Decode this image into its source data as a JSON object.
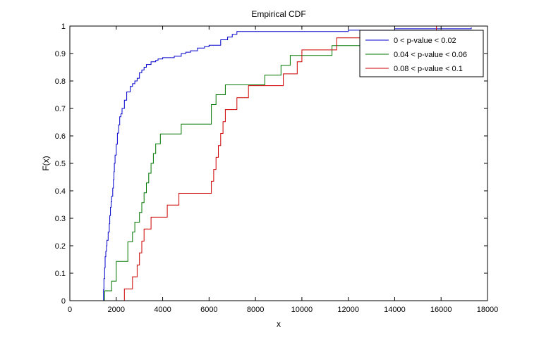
{
  "chart_data": {
    "type": "line",
    "title": "Empirical CDF",
    "xlabel": "x",
    "ylabel": "F(x)",
    "xlim": [
      0,
      18000
    ],
    "ylim": [
      0,
      1
    ],
    "xticks": [
      0,
      2000,
      4000,
      6000,
      8000,
      10000,
      12000,
      14000,
      16000,
      18000
    ],
    "yticks": [
      0,
      0.1,
      0.2,
      0.3,
      0.4,
      0.5,
      0.6,
      0.7,
      0.8,
      0.9,
      1
    ],
    "xtick_labels": [
      "0",
      "2000",
      "4000",
      "6000",
      "8000",
      "10000",
      "12000",
      "14000",
      "16000",
      "18000"
    ],
    "ytick_labels": [
      "0",
      "0.1",
      "0.2",
      "0.3",
      "0.4",
      "0.5",
      "0.6",
      "0.7",
      "0.8",
      "0.9",
      "1"
    ],
    "grid": false,
    "legend_position": "top-right",
    "step": true,
    "series": [
      {
        "name": "0 < p-value < 0.02",
        "color": "#0000cc",
        "x": [
          1450,
          1470,
          1500,
          1520,
          1550,
          1580,
          1600,
          1650,
          1700,
          1720,
          1750,
          1780,
          1800,
          1850,
          1880,
          1900,
          1920,
          1950,
          2000,
          2050,
          2100,
          2150,
          2200,
          2250,
          2350,
          2450,
          2600,
          2700,
          2800,
          2900,
          3000,
          3100,
          3200,
          3300,
          3500,
          3700,
          3800,
          4000,
          4500,
          4800,
          5000,
          5200,
          5500,
          5800,
          6000,
          6500,
          6800,
          7000,
          7200,
          12000,
          14000,
          17300
        ],
        "y": [
          0.04,
          0.08,
          0.12,
          0.16,
          0.18,
          0.2,
          0.22,
          0.25,
          0.28,
          0.31,
          0.34,
          0.36,
          0.38,
          0.41,
          0.44,
          0.47,
          0.5,
          0.53,
          0.57,
          0.61,
          0.64,
          0.67,
          0.68,
          0.7,
          0.73,
          0.76,
          0.78,
          0.79,
          0.8,
          0.81,
          0.83,
          0.84,
          0.85,
          0.86,
          0.87,
          0.875,
          0.88,
          0.885,
          0.89,
          0.9,
          0.905,
          0.91,
          0.92,
          0.925,
          0.93,
          0.95,
          0.96,
          0.97,
          0.98,
          0.985,
          0.99,
          0.995
        ]
      },
      {
        "name": "0.04 < p-value < 0.06",
        "color": "#007700",
        "x": [
          1500,
          1800,
          2000,
          2500,
          2700,
          2800,
          3000,
          3100,
          3200,
          3300,
          3400,
          3500,
          3600,
          3700,
          3900,
          4800,
          6100,
          6300,
          6700,
          8400,
          9100,
          9500,
          11300,
          17300
        ],
        "y": [
          0.036,
          0.071,
          0.143,
          0.214,
          0.25,
          0.286,
          0.321,
          0.357,
          0.393,
          0.429,
          0.464,
          0.5,
          0.536,
          0.571,
          0.607,
          0.643,
          0.714,
          0.75,
          0.786,
          0.821,
          0.857,
          0.893,
          0.929,
          0.964
        ]
      },
      {
        "name": "0.08 < p-value < 0.1",
        "color": "#cc0000",
        "x": [
          2350,
          2700,
          2900,
          3000,
          3100,
          3200,
          3500,
          4200,
          4700,
          6100,
          6200,
          6300,
          6400,
          6500,
          6600,
          6700,
          7200,
          7700,
          9200,
          9800,
          10000,
          11500,
          15800,
          17300
        ],
        "y": [
          0.043,
          0.087,
          0.13,
          0.174,
          0.217,
          0.261,
          0.304,
          0.348,
          0.391,
          0.435,
          0.478,
          0.522,
          0.565,
          0.609,
          0.652,
          0.696,
          0.739,
          0.783,
          0.826,
          0.87,
          0.913,
          0.957,
          1.0,
          1.0
        ]
      }
    ]
  }
}
